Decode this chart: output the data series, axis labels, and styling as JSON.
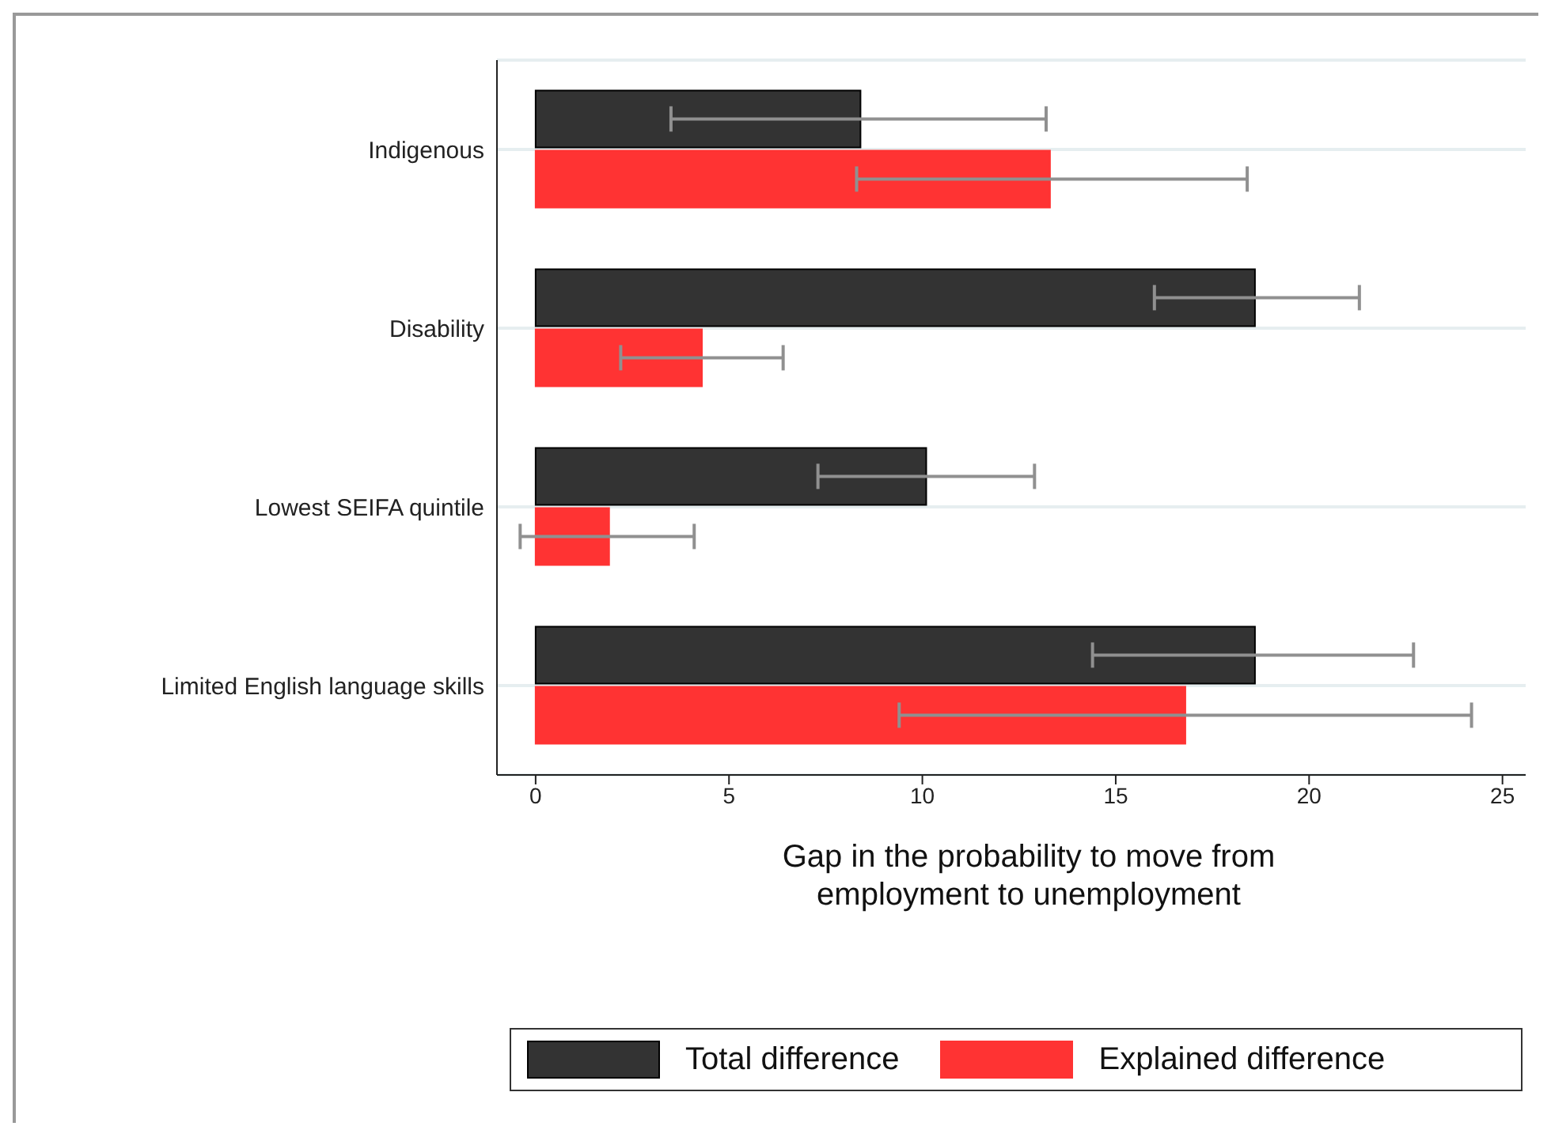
{
  "chart_data": {
    "type": "bar",
    "orientation": "horizontal",
    "categories": [
      "Indigenous",
      "Disability",
      "Lowest SEIFA quintile",
      "Limited English language skills"
    ],
    "series": [
      {
        "name": "Total difference",
        "color": "#333333",
        "values": [
          8.4,
          18.6,
          10.1,
          18.6
        ],
        "errors": [
          [
            3.5,
            13.2
          ],
          [
            16.0,
            21.3
          ],
          [
            7.3,
            12.9
          ],
          [
            14.4,
            22.7
          ]
        ]
      },
      {
        "name": "Explained difference",
        "color": "#ff3333",
        "values": [
          13.3,
          4.3,
          1.9,
          16.8
        ],
        "errors": [
          [
            8.3,
            18.4
          ],
          [
            2.2,
            6.4
          ],
          [
            -0.4,
            4.1
          ],
          [
            9.4,
            24.2
          ]
        ]
      }
    ],
    "xlim": [
      -1,
      25.6
    ],
    "xticks": [
      0,
      5,
      10,
      15,
      20,
      25
    ],
    "xlabel": "Gap in the probability to move from employment to unemployment",
    "grid": "y",
    "legend": "bottom"
  }
}
